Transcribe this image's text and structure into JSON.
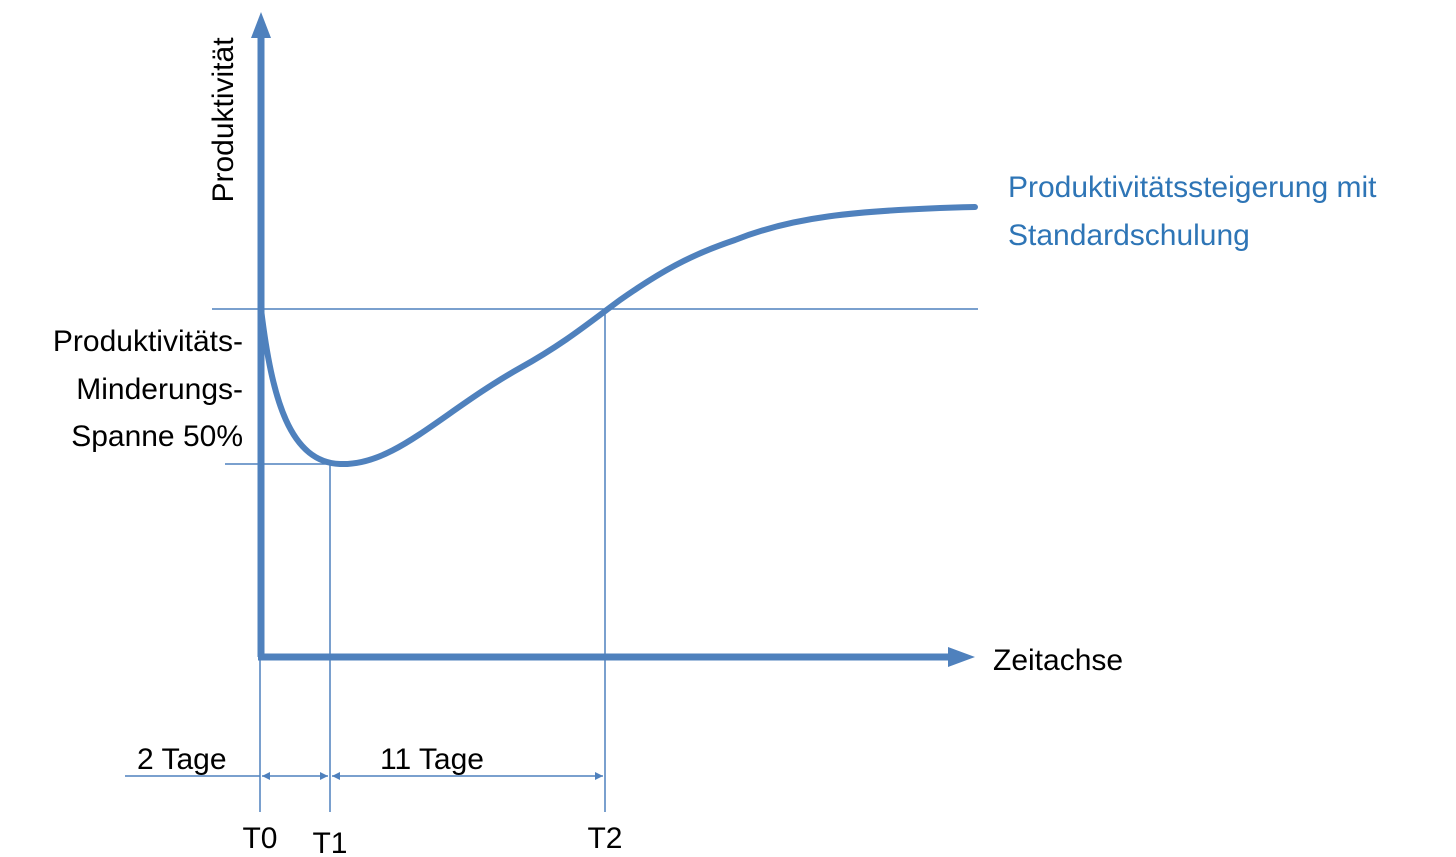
{
  "axes": {
    "y_label": "Produktivität",
    "x_label": "Zeitachse"
  },
  "curve": {
    "label_line1": "Produktivitätssteigerung mit",
    "label_line2": "Standardschulung"
  },
  "reduction": {
    "line1": "Produktivitäts-",
    "line2": "Minderungs-",
    "line3": "Spanne 50%"
  },
  "durations": {
    "first": "2 Tage",
    "second": "11 Tage"
  },
  "time_points": {
    "t0": "T0",
    "t1": "T1",
    "t2": "T2"
  },
  "colors": {
    "curve": "#4f81bd",
    "curve_label": "#2e75b6",
    "text": "#000000"
  }
}
